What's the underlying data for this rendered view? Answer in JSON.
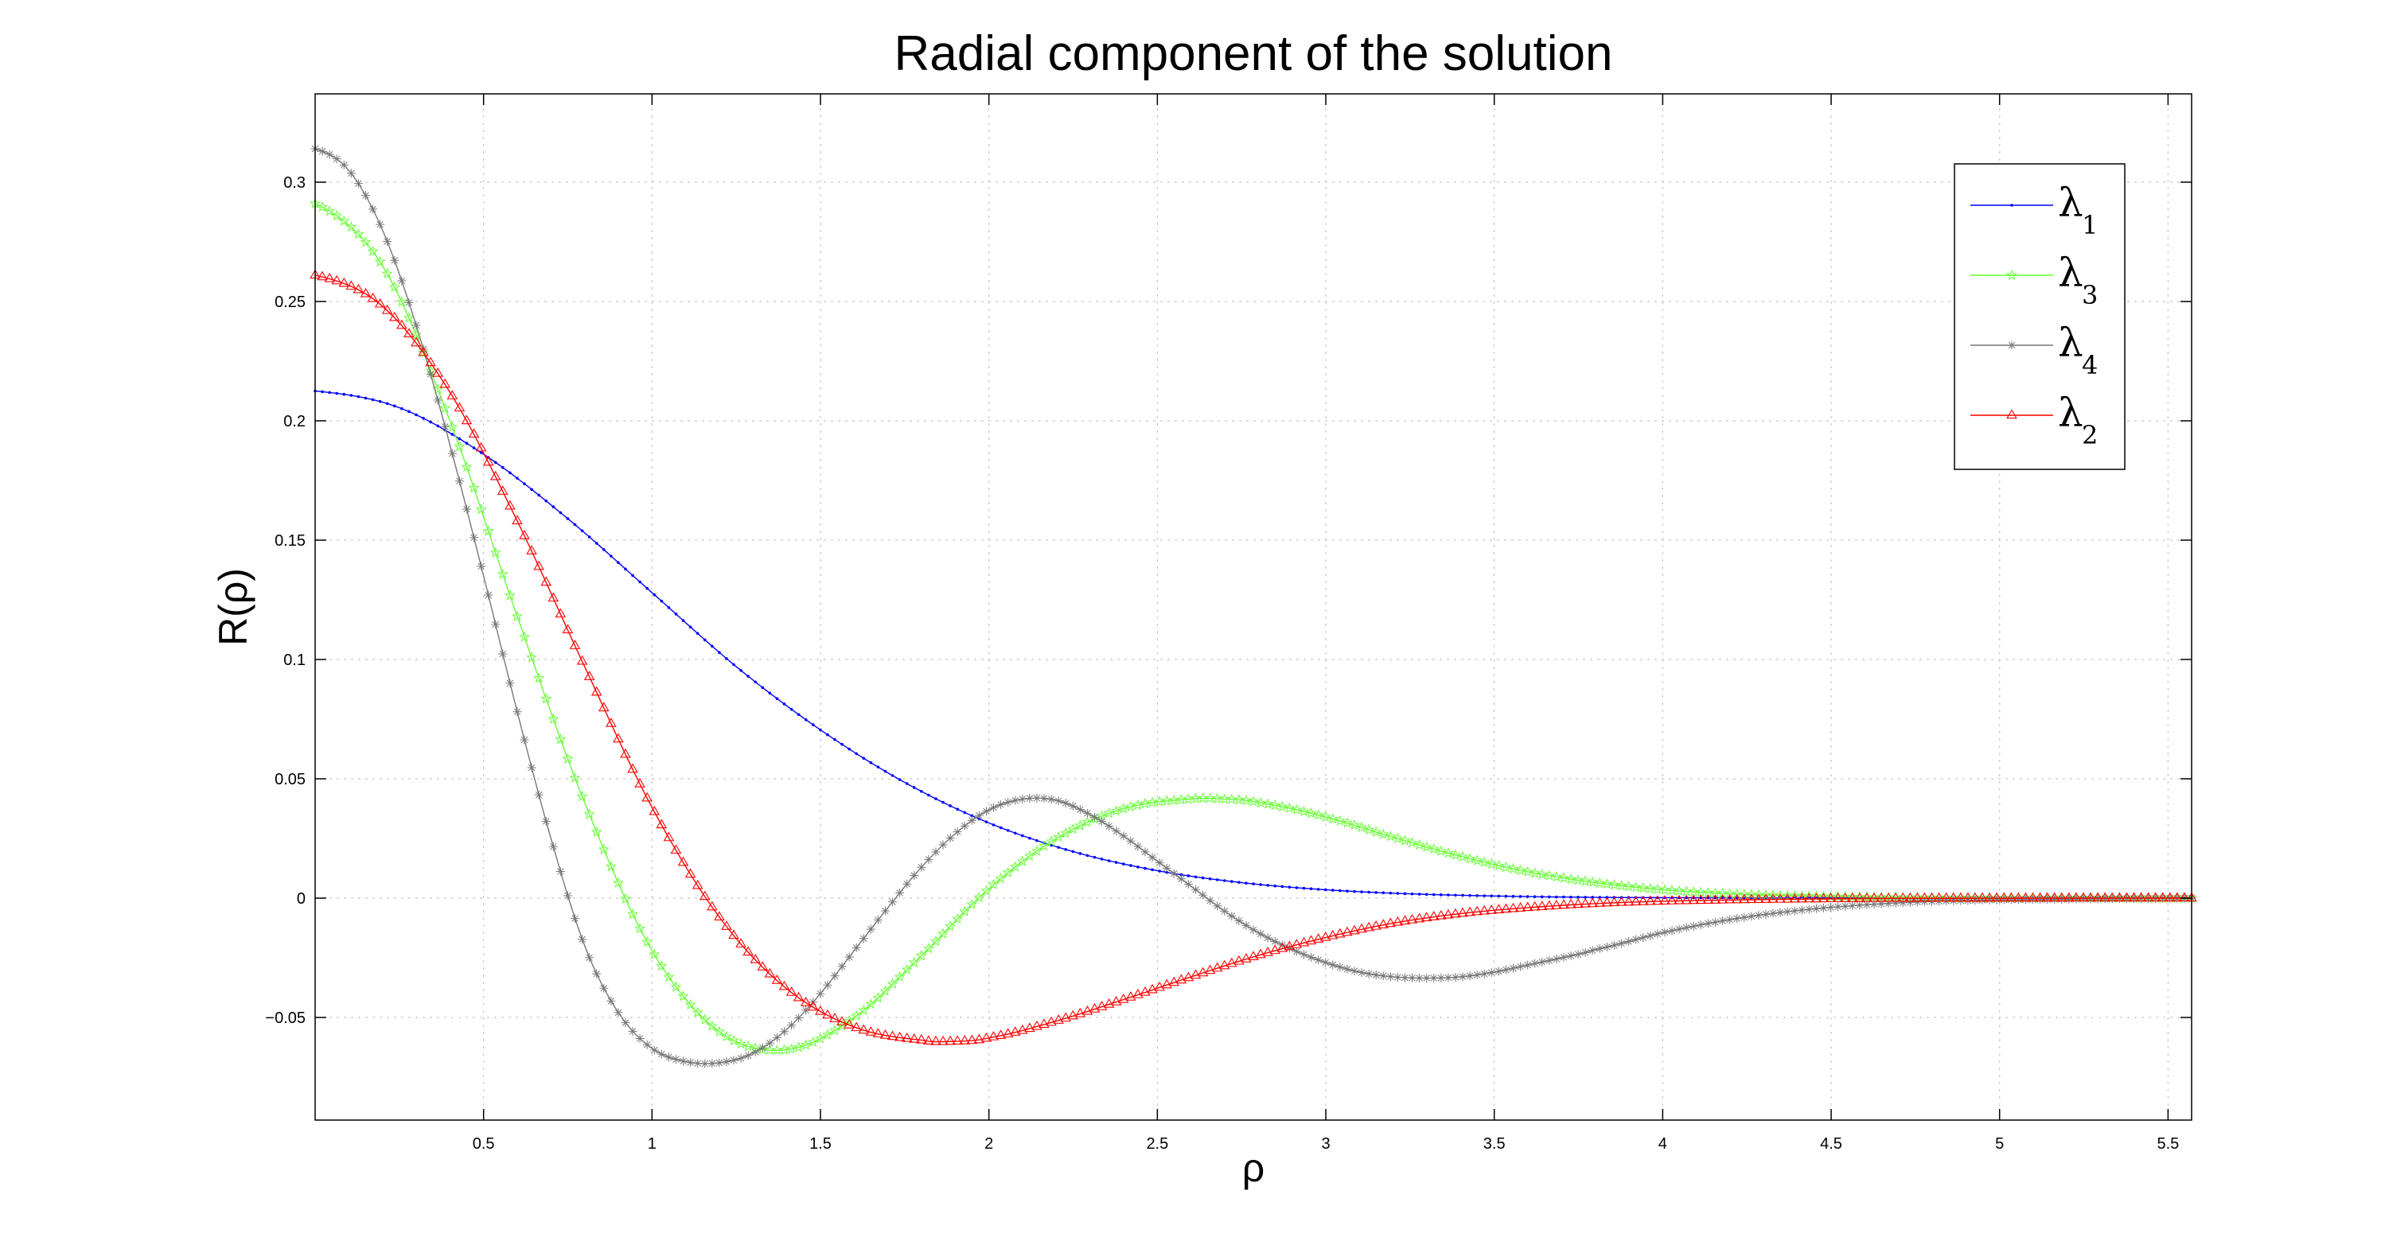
{
  "chart_data": {
    "type": "line",
    "title": "Radial component of the solution",
    "xlabel": "ρ",
    "ylabel": "R(ρ)",
    "xlim": [
      0,
      5.57
    ],
    "ylim": [
      -0.093,
      0.337
    ],
    "xticks": [
      0.5,
      1,
      1.5,
      2,
      2.5,
      3,
      3.5,
      4,
      4.5,
      5,
      5.5
    ],
    "xtick_labels": [
      "0.5",
      "1",
      "1.5",
      "2",
      "2.5",
      "3",
      "3.5",
      "4",
      "4.5",
      "5",
      "5.5"
    ],
    "yticks": [
      -0.05,
      0,
      0.05,
      0.1,
      0.15,
      0.2,
      0.25,
      0.3
    ],
    "ytick_labels": [
      "−0.05",
      "0",
      "0.05",
      "0.1",
      "0.15",
      "0.2",
      "0.25",
      "0.3"
    ],
    "grid": true,
    "legend_position": "top-right",
    "series": [
      {
        "name": "λ",
        "subscript": "1",
        "color": "#0000ff",
        "marker": "dot",
        "x": [
          0,
          0.25,
          0.5,
          0.75,
          1.0,
          1.25,
          1.5,
          1.75,
          2.0,
          2.25,
          2.5,
          2.75,
          3.0,
          3.25,
          3.5,
          3.75,
          4.0,
          4.5,
          5.0,
          5.57
        ],
        "y": [
          0.2125,
          0.2055,
          0.186,
          0.159,
          0.128,
          0.097,
          0.0705,
          0.0485,
          0.0315,
          0.0195,
          0.0115,
          0.0065,
          0.0035,
          0.0018,
          0.0009,
          0.0004,
          0.0002,
          4e-05,
          1e-05,
          0
        ]
      },
      {
        "name": "λ",
        "subscript": "3",
        "color": "#66ff33",
        "marker": "star",
        "x": [
          0,
          0.2,
          0.4,
          0.6,
          0.8,
          1.0,
          1.2,
          1.4,
          1.6,
          1.8,
          2.0,
          2.2,
          2.4,
          2.6,
          2.7,
          2.8,
          3.0,
          3.2,
          3.4,
          3.6,
          3.8,
          4.0,
          4.2,
          4.4,
          4.6,
          5.0,
          5.57
        ],
        "y": [
          0.291,
          0.265,
          0.2,
          0.118,
          0.04,
          -0.022,
          -0.056,
          -0.0635,
          -0.05,
          -0.024,
          0.004,
          0.025,
          0.0375,
          0.0415,
          0.0415,
          0.04,
          0.034,
          0.0255,
          0.0175,
          0.011,
          0.0065,
          0.0035,
          0.0018,
          0.0009,
          0.0004,
          0.0001,
          0
        ]
      },
      {
        "name": "λ",
        "subscript": "4",
        "color": "#777777",
        "marker": "asterisk",
        "x": [
          0,
          0.1,
          0.2,
          0.3,
          0.4,
          0.5,
          0.6,
          0.7,
          0.8,
          0.9,
          1.0,
          1.1,
          1.2,
          1.3,
          1.4,
          1.5,
          1.6,
          1.7,
          1.8,
          1.9,
          2.0,
          2.1,
          2.2,
          2.3,
          2.4,
          2.5,
          2.6,
          2.7,
          2.8,
          2.9,
          3.0,
          3.1,
          3.2,
          3.3,
          3.4,
          3.5,
          3.6,
          3.7,
          3.8,
          4.0,
          4.2,
          4.4,
          4.6,
          4.8,
          5.0,
          5.57
        ],
        "y": [
          0.314,
          0.305,
          0.28,
          0.24,
          0.19,
          0.135,
          0.078,
          0.025,
          -0.02,
          -0.048,
          -0.063,
          -0.0685,
          -0.069,
          -0.065,
          -0.055,
          -0.04,
          -0.022,
          -0.004,
          0.013,
          0.027,
          0.037,
          0.0415,
          0.041,
          0.035,
          0.026,
          0.0155,
          0.005,
          -0.0055,
          -0.0145,
          -0.0215,
          -0.027,
          -0.031,
          -0.033,
          -0.0335,
          -0.033,
          -0.031,
          -0.028,
          -0.025,
          -0.0215,
          -0.0145,
          -0.009,
          -0.0052,
          -0.0028,
          -0.0014,
          -0.0007,
          0
        ]
      },
      {
        "name": "λ",
        "subscript": "2",
        "color": "#ff0000",
        "marker": "triangle",
        "x": [
          0,
          0.2,
          0.4,
          0.6,
          0.8,
          1.0,
          1.2,
          1.4,
          1.6,
          1.8,
          1.9,
          2.0,
          2.2,
          2.4,
          2.6,
          2.8,
          3.0,
          3.2,
          3.4,
          3.6,
          3.8,
          4.0,
          4.3,
          4.6,
          5.0,
          5.57
        ],
        "y": [
          0.261,
          0.248,
          0.212,
          0.158,
          0.097,
          0.038,
          -0.008,
          -0.038,
          -0.054,
          -0.0595,
          -0.06,
          -0.0585,
          -0.0515,
          -0.0425,
          -0.033,
          -0.024,
          -0.0165,
          -0.0105,
          -0.0065,
          -0.004,
          -0.0023,
          -0.0013,
          -0.0006,
          -0.0002,
          -5e-05,
          0
        ]
      }
    ]
  }
}
